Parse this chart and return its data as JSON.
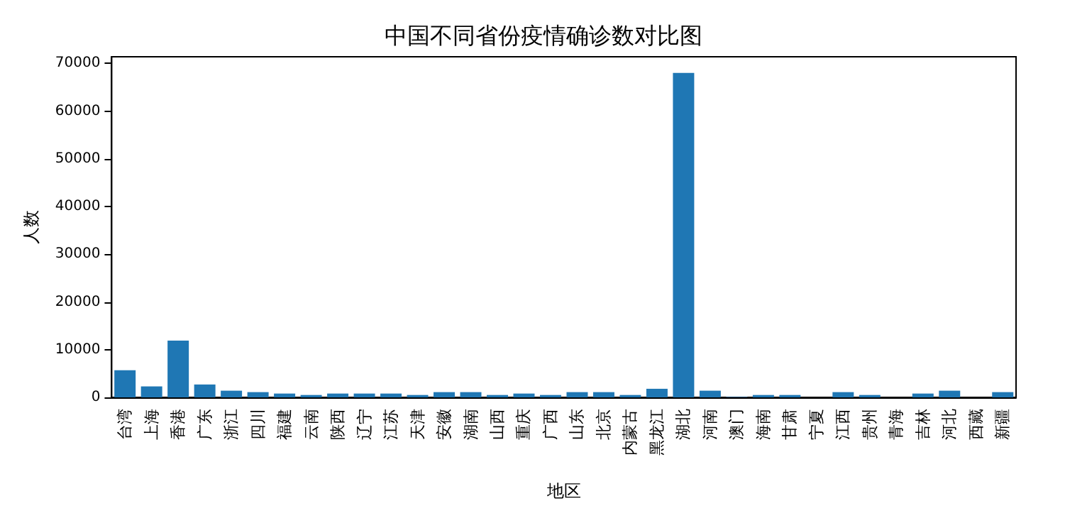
{
  "chart_data": {
    "type": "bar",
    "title": "中国不同省份疫情确诊数对比图",
    "xlabel": "地区",
    "ylabel": "人数",
    "categories": [
      "台湾",
      "上海",
      "香港",
      "广东",
      "浙江",
      "四川",
      "福建",
      "云南",
      "陕西",
      "辽宁",
      "江苏",
      "天津",
      "安徽",
      "湖南",
      "山西",
      "重庆",
      "广西",
      "山东",
      "北京",
      "内蒙古",
      "黑龙江",
      "湖北",
      "河南",
      "澳门",
      "海南",
      "甘肃",
      "宁夏",
      "江西",
      "贵州",
      "青海",
      "吉林",
      "河北",
      "西藏",
      "新疆"
    ],
    "values": [
      5700,
      2300,
      11900,
      2700,
      1400,
      1100,
      800,
      500,
      800,
      800,
      800,
      500,
      1100,
      1100,
      500,
      800,
      500,
      1100,
      1100,
      500,
      1800,
      68000,
      1400,
      100,
      500,
      500,
      0,
      1100,
      500,
      0,
      800,
      1400,
      0,
      1100
    ],
    "color": "#1f77b4",
    "ylim": [
      0,
      71400
    ],
    "yticks": [
      0,
      10000,
      20000,
      30000,
      40000,
      50000,
      60000,
      70000
    ],
    "grid": false
  }
}
